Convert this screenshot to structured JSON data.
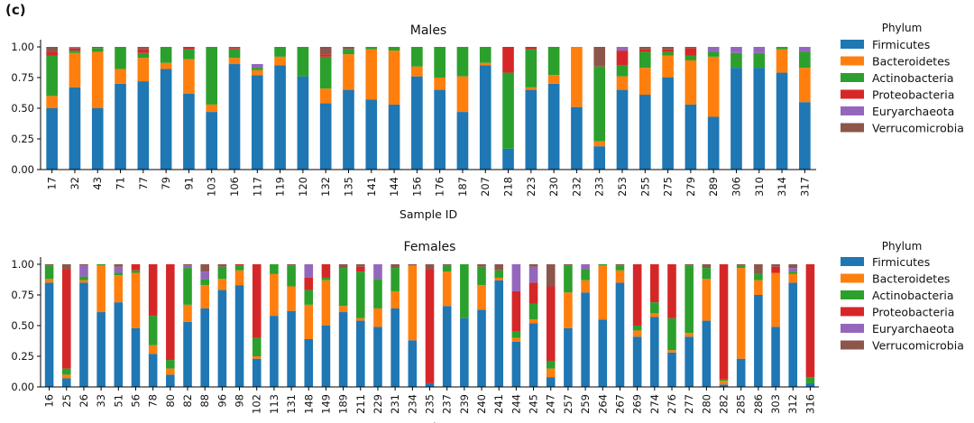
{
  "panel_label": "(c)",
  "colors": {
    "Firmicutes": "#1f77b4",
    "Bacteroidetes": "#ff7f0e",
    "Actinobacteria": "#2ca02c",
    "Proteobacteria": "#d62728",
    "Euryarchaeota": "#9467bd",
    "Verrucomicrobia": "#8c564b"
  },
  "chart_data": [
    {
      "type": "bar",
      "stacked": true,
      "title": "Males",
      "xlabel": "Sample ID",
      "ylabel": "",
      "ylim": [
        0,
        1
      ],
      "yticks": [
        "0.00",
        "0.25",
        "0.50",
        "0.75",
        "1.00"
      ],
      "legend": {
        "title": "Phylum",
        "position": "right",
        "entries": [
          "Firmicutes",
          "Bacteroidetes",
          "Actinobacteria",
          "Proteobacteria",
          "Euryarchaeota",
          "Verrucomicrobia"
        ]
      },
      "categories": [
        "17",
        "32",
        "43",
        "71",
        "77",
        "79",
        "91",
        "103",
        "106",
        "117",
        "119",
        "120",
        "132",
        "135",
        "141",
        "144",
        "156",
        "176",
        "187",
        "207",
        "218",
        "223",
        "230",
        "232",
        "233",
        "253",
        "255",
        "275",
        "279",
        "289",
        "306",
        "310",
        "314",
        "317"
      ],
      "series": [
        {
          "name": "Firmicutes",
          "values": [
            0.5,
            0.67,
            0.5,
            0.7,
            0.72,
            0.82,
            0.62,
            0.47,
            0.86,
            0.77,
            0.85,
            0.76,
            0.54,
            0.65,
            0.57,
            0.53,
            0.76,
            0.65,
            0.47,
            0.85,
            0.17,
            0.65,
            0.7,
            0.51,
            0.19,
            0.65,
            0.61,
            0.75,
            0.53,
            0.43,
            0.83,
            0.83,
            0.79,
            0.55
          ]
        },
        {
          "name": "Bacteroidetes",
          "values": [
            0.1,
            0.28,
            0.46,
            0.12,
            0.19,
            0.05,
            0.28,
            0.06,
            0.05,
            0.04,
            0.07,
            0.0,
            0.12,
            0.29,
            0.41,
            0.44,
            0.08,
            0.1,
            0.29,
            0.02,
            0.0,
            0.02,
            0.07,
            0.49,
            0.04,
            0.11,
            0.22,
            0.18,
            0.36,
            0.49,
            0.0,
            0.0,
            0.19,
            0.28
          ]
        },
        {
          "name": "Actinobacteria",
          "values": [
            0.33,
            0.02,
            0.03,
            0.18,
            0.04,
            0.13,
            0.08,
            0.47,
            0.07,
            0.02,
            0.08,
            0.24,
            0.26,
            0.04,
            0.02,
            0.03,
            0.16,
            0.25,
            0.24,
            0.13,
            0.62,
            0.31,
            0.23,
            0.0,
            0.61,
            0.09,
            0.13,
            0.03,
            0.04,
            0.04,
            0.12,
            0.12,
            0.02,
            0.13
          ]
        },
        {
          "name": "Proteobacteria",
          "values": [
            0.03,
            0.02,
            0.0,
            0.0,
            0.03,
            0.0,
            0.02,
            0.0,
            0.01,
            0.0,
            0.0,
            0.0,
            0.02,
            0.0,
            0.0,
            0.0,
            0.0,
            0.0,
            0.0,
            0.0,
            0.21,
            0.02,
            0.0,
            0.0,
            0.0,
            0.12,
            0.02,
            0.02,
            0.06,
            0.0,
            0.0,
            0.0,
            0.0,
            0.0
          ]
        },
        {
          "name": "Euryarchaeota",
          "values": [
            0.0,
            0.01,
            0.0,
            0.0,
            0.0,
            0.0,
            0.0,
            0.0,
            0.0,
            0.03,
            0.0,
            0.0,
            0.0,
            0.0,
            0.0,
            0.0,
            0.0,
            0.0,
            0.0,
            0.0,
            0.0,
            0.0,
            0.0,
            0.0,
            0.0,
            0.03,
            0.0,
            0.0,
            0.0,
            0.04,
            0.05,
            0.05,
            0.0,
            0.04
          ]
        },
        {
          "name": "Verrucomicrobia",
          "values": [
            0.04,
            0.0,
            0.01,
            0.0,
            0.02,
            0.0,
            0.0,
            0.0,
            0.01,
            0.0,
            0.0,
            0.0,
            0.06,
            0.02,
            0.0,
            0.0,
            0.0,
            0.0,
            0.0,
            0.0,
            0.0,
            0.0,
            0.0,
            0.0,
            0.16,
            0.0,
            0.02,
            0.02,
            0.01,
            0.0,
            0.0,
            0.0,
            0.0,
            0.0
          ]
        }
      ]
    },
    {
      "type": "bar",
      "stacked": true,
      "title": "Females",
      "xlabel": "Sample ID",
      "ylabel": "",
      "ylim": [
        0,
        1
      ],
      "yticks": [
        "0.00",
        "0.25",
        "0.50",
        "0.75",
        "1.00"
      ],
      "legend": {
        "title": "Phylum",
        "position": "right",
        "entries": [
          "Firmicutes",
          "Bacteroidetes",
          "Actinobacteria",
          "Proteobacteria",
          "Euryarchaeota",
          "Verrucomicrobia"
        ]
      },
      "categories": [
        "16",
        "25",
        "26",
        "33",
        "51",
        "56",
        "78",
        "80",
        "82",
        "88",
        "96",
        "98",
        "102",
        "113",
        "131",
        "148",
        "149",
        "189",
        "211",
        "229",
        "231",
        "234",
        "235",
        "237",
        "239",
        "240",
        "241",
        "244",
        "245",
        "247",
        "257",
        "259",
        "264",
        "267",
        "269",
        "274",
        "276",
        "277",
        "280",
        "282",
        "285",
        "286",
        "303",
        "312",
        "316"
      ],
      "series": [
        {
          "name": "Firmicutes",
          "values": [
            0.85,
            0.07,
            0.85,
            0.61,
            0.69,
            0.48,
            0.27,
            0.1,
            0.53,
            0.64,
            0.79,
            0.83,
            0.23,
            0.58,
            0.62,
            0.39,
            0.5,
            0.61,
            0.54,
            0.49,
            0.64,
            0.38,
            0.03,
            0.66,
            0.56,
            0.63,
            0.87,
            0.37,
            0.52,
            0.08,
            0.48,
            0.77,
            0.55,
            0.85,
            0.41,
            0.57,
            0.28,
            0.41,
            0.54,
            0.02,
            0.23,
            0.75,
            0.49,
            0.85,
            0.03
          ]
        },
        {
          "name": "Bacteroidetes",
          "values": [
            0.03,
            0.03,
            0.02,
            0.38,
            0.22,
            0.45,
            0.07,
            0.05,
            0.14,
            0.19,
            0.09,
            0.12,
            0.02,
            0.34,
            0.2,
            0.28,
            0.37,
            0.05,
            0.02,
            0.15,
            0.14,
            0.61,
            0.0,
            0.28,
            0.0,
            0.2,
            0.02,
            0.03,
            0.03,
            0.07,
            0.29,
            0.1,
            0.44,
            0.1,
            0.05,
            0.03,
            0.02,
            0.03,
            0.34,
            0.03,
            0.74,
            0.12,
            0.44,
            0.07,
            0.0
          ]
        },
        {
          "name": "Actinobacteria",
          "values": [
            0.11,
            0.05,
            0.03,
            0.01,
            0.02,
            0.02,
            0.24,
            0.07,
            0.3,
            0.05,
            0.1,
            0.04,
            0.15,
            0.08,
            0.17,
            0.12,
            0.02,
            0.31,
            0.38,
            0.24,
            0.19,
            0.0,
            0.0,
            0.05,
            0.44,
            0.15,
            0.06,
            0.05,
            0.13,
            0.06,
            0.22,
            0.09,
            0.01,
            0.04,
            0.04,
            0.09,
            0.26,
            0.55,
            0.09,
            0.01,
            0.02,
            0.05,
            0.0,
            0.02,
            0.05
          ]
        },
        {
          "name": "Proteobacteria",
          "values": [
            0.0,
            0.81,
            0.0,
            0.0,
            0.0,
            0.05,
            0.42,
            0.78,
            0.0,
            0.0,
            0.0,
            0.01,
            0.6,
            0.0,
            0.0,
            0.1,
            0.11,
            0.0,
            0.04,
            0.0,
            0.0,
            0.0,
            0.93,
            0.0,
            0.0,
            0.0,
            0.0,
            0.33,
            0.17,
            0.61,
            0.0,
            0.0,
            0.0,
            0.0,
            0.5,
            0.31,
            0.44,
            0.0,
            0.0,
            0.94,
            0.0,
            0.0,
            0.05,
            0.0,
            0.92
          ]
        },
        {
          "name": "Euryarchaeota",
          "values": [
            0.0,
            0.0,
            0.09,
            0.0,
            0.05,
            0.0,
            0.0,
            0.0,
            0.02,
            0.06,
            0.0,
            0.0,
            0.0,
            0.0,
            0.0,
            0.11,
            0.0,
            0.0,
            0.0,
            0.12,
            0.0,
            0.0,
            0.0,
            0.0,
            0.0,
            0.0,
            0.0,
            0.22,
            0.13,
            0.0,
            0.0,
            0.04,
            0.0,
            0.0,
            0.0,
            0.0,
            0.0,
            0.0,
            0.0,
            0.0,
            0.0,
            0.0,
            0.0,
            0.03,
            0.0
          ]
        },
        {
          "name": "Verrucomicrobia",
          "values": [
            0.01,
            0.04,
            0.01,
            0.0,
            0.02,
            0.0,
            0.0,
            0.0,
            0.01,
            0.06,
            0.02,
            0.0,
            0.0,
            0.0,
            0.01,
            0.0,
            0.0,
            0.03,
            0.02,
            0.0,
            0.03,
            0.01,
            0.04,
            0.01,
            0.0,
            0.02,
            0.05,
            0.0,
            0.02,
            0.18,
            0.01,
            0.0,
            0.0,
            0.01,
            0.0,
            0.0,
            0.0,
            0.01,
            0.03,
            0.0,
            0.01,
            0.08,
            0.02,
            0.03,
            0.0
          ]
        }
      ]
    }
  ]
}
